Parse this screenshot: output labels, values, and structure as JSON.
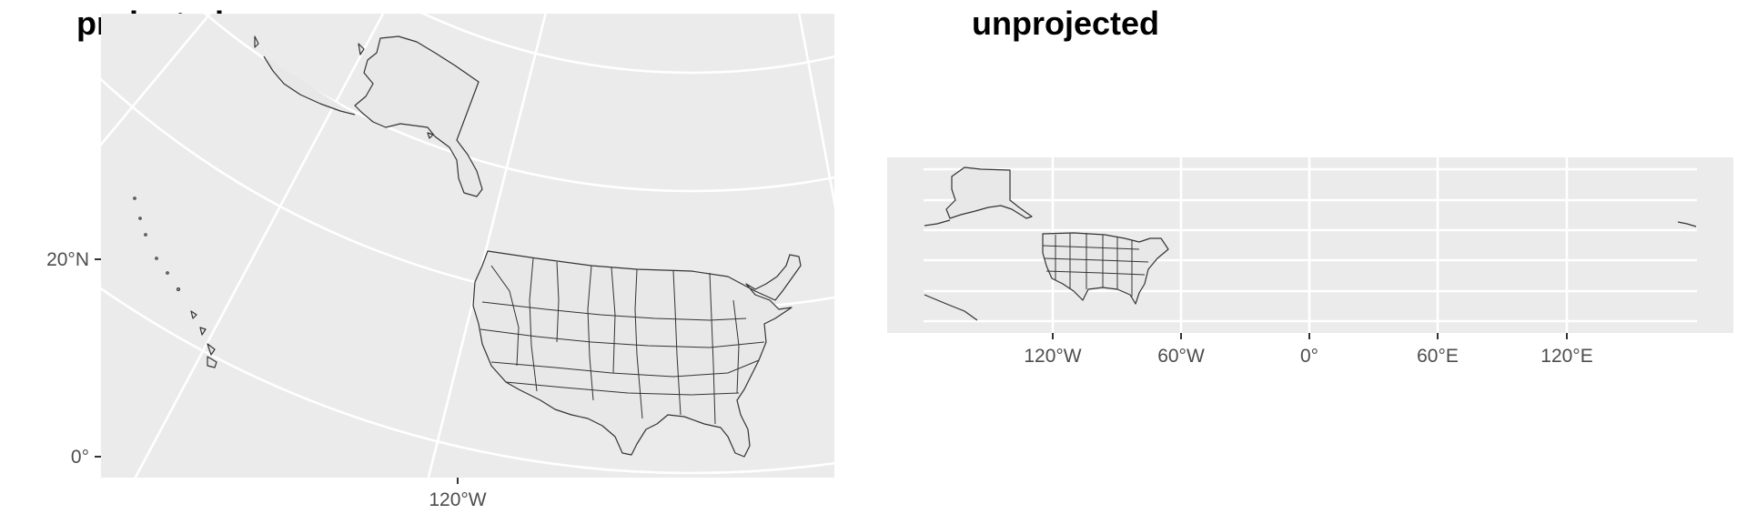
{
  "panels": {
    "projected": {
      "title": "projected",
      "y_ticks": [
        "20°N",
        "0°"
      ],
      "x_ticks": [
        "120°W"
      ]
    },
    "unprojected": {
      "title": "unprojected",
      "x_ticks": [
        "120°W",
        "60°W",
        "0°",
        "60°E",
        "120°E"
      ]
    }
  },
  "colors": {
    "panel_background": "#ebebeb",
    "gridlines": "#ffffff",
    "land_fill": "#e8e8e8",
    "borders": "#333333",
    "tick_text": "#4d4d4d"
  }
}
